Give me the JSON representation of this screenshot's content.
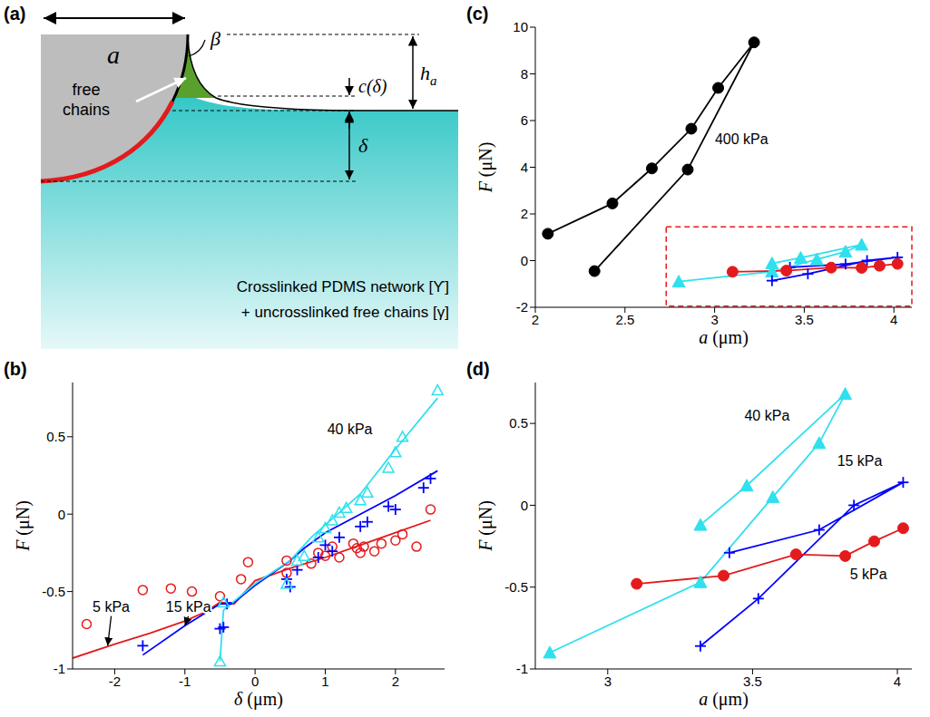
{
  "diagram": {
    "panel": "(a)",
    "contact_radius": "a",
    "angle": "β",
    "free_chains": "free chains",
    "meniscus_height": "c(δ)",
    "height": {
      "base": "h",
      "sub": "a"
    },
    "indentation": "δ",
    "material": [
      "Crosslinked PDMS network [ϒ]",
      "+ uncrosslinked free chains [γ]"
    ]
  },
  "chart_data": [
    {
      "panel": "(b)",
      "type": "line",
      "x_label": "δ (μm)",
      "y_label": "F (μN)",
      "xlim": [
        -2.6,
        2.7
      ],
      "xticks": [
        -2,
        -1,
        0,
        1,
        2
      ],
      "ylim": [
        -1,
        0.85
      ],
      "yticks": [
        -1,
        -0.5,
        0,
        0.5
      ],
      "grid": false,
      "series": [
        {
          "color": "#e41a1c",
          "marker": "open_circle",
          "line_style": "none",
          "x": [
            -2.4,
            -1.6,
            -1.2,
            -0.9,
            -0.5,
            -0.2,
            -0.1,
            0.45,
            0.45,
            0.8,
            0.9,
            1.0,
            1.1,
            1.2,
            1.4,
            1.45,
            1.5,
            1.55,
            1.7,
            1.8,
            2.0,
            2.1,
            2.3,
            2.5
          ],
          "values": [
            -0.71,
            -0.49,
            -0.48,
            -0.5,
            -0.53,
            -0.42,
            -0.31,
            -0.3,
            -0.38,
            -0.32,
            -0.25,
            -0.27,
            -0.21,
            -0.28,
            -0.19,
            -0.22,
            -0.25,
            -0.21,
            -0.24,
            -0.19,
            -0.17,
            -0.13,
            -0.21,
            0.03
          ]
        },
        {
          "color": "#e41a1c",
          "marker": "none",
          "line_style": "solid",
          "x": [
            -2.6,
            -2.0,
            -1.5,
            -1.0,
            -0.7,
            -0.5,
            -0.3,
            0.0,
            0.5,
            1.0,
            1.5,
            2.0,
            2.5
          ],
          "values": [
            -0.93,
            -0.84,
            -0.77,
            -0.69,
            -0.63,
            -0.57,
            -0.58,
            -0.43,
            -0.35,
            -0.28,
            -0.2,
            -0.12,
            -0.04
          ]
        },
        {
          "color": "#0000ff",
          "marker": "plus",
          "line_style": "none",
          "x": [
            -1.6,
            -0.5,
            -0.45,
            -0.4,
            0.45,
            0.5,
            0.6,
            0.9,
            1.0,
            1.1,
            1.2,
            1.5,
            1.6,
            1.9,
            2.0,
            2.4,
            2.5
          ],
          "values": [
            -0.85,
            -0.74,
            -0.73,
            -0.58,
            -0.42,
            -0.47,
            -0.36,
            -0.28,
            -0.2,
            -0.24,
            -0.15,
            -0.08,
            -0.05,
            0.05,
            0.03,
            0.17,
            0.23
          ]
        },
        {
          "color": "#0000ff",
          "marker": "none",
          "line_style": "solid",
          "x": [
            -1.6,
            -1.0,
            -0.5,
            -0.3,
            0.0,
            0.5,
            0.7,
            1.0,
            1.5,
            2.0,
            2.6
          ],
          "values": [
            -0.91,
            -0.72,
            -0.58,
            -0.57,
            -0.46,
            -0.3,
            -0.22,
            -0.12,
            0.0,
            0.12,
            0.28
          ]
        },
        {
          "color": "#2fe0ee",
          "marker": "open_triangle",
          "line_style": "none",
          "x": [
            -0.5,
            -0.45,
            0.45,
            0.6,
            0.7,
            0.9,
            1.0,
            1.1,
            1.2,
            1.3,
            1.5,
            1.6,
            1.9,
            2.0,
            2.1,
            2.6
          ],
          "values": [
            -0.95,
            -0.57,
            -0.45,
            -0.3,
            -0.27,
            -0.15,
            -0.09,
            -0.04,
            0.01,
            0.04,
            0.09,
            0.14,
            0.3,
            0.4,
            0.5,
            0.8
          ]
        },
        {
          "color": "#2fe0ee",
          "marker": "none",
          "line_style": "solid",
          "x": [
            -0.5,
            -0.45,
            0.0,
            0.5,
            0.8,
            1.0,
            1.5,
            2.0,
            2.6
          ],
          "values": [
            -0.95,
            -0.62,
            -0.45,
            -0.3,
            -0.15,
            -0.07,
            0.13,
            0.42,
            0.75
          ]
        }
      ],
      "annotations": [
        {
          "text": "40 kPa",
          "x": 1.35,
          "y": 0.55
        },
        {
          "text": "5 kPa",
          "x": -2.05,
          "y": -0.6,
          "arrow_to": [
            -2.1,
            -0.85
          ]
        },
        {
          "text": "15 kPa",
          "x": -0.95,
          "y": -0.6,
          "arrow_to": [
            -1.0,
            -0.72
          ]
        }
      ]
    },
    {
      "panel": "(c)",
      "type": "line",
      "x_label": "a (μm)",
      "y_label": "F (μN)",
      "xlim": [
        2,
        4.1
      ],
      "xticks": [
        2,
        2.5,
        3,
        3.5,
        4
      ],
      "ylim": [
        -2,
        10
      ],
      "yticks": [
        -2,
        0,
        2,
        4,
        6,
        8,
        10
      ],
      "grid": false,
      "zoom_box": {
        "x": [
          2.73,
          4.1
        ],
        "y": [
          -1.95,
          1.45
        ],
        "color": "#e41a1c",
        "line_style": "dashed"
      },
      "series": [
        {
          "color": "#000000",
          "marker": "filled_circle",
          "line_style": "solid",
          "x": [
            2.07,
            2.43,
            2.65,
            2.87,
            3.02,
            3.22,
            2.85,
            2.33
          ],
          "values": [
            1.15,
            2.45,
            3.95,
            5.65,
            7.4,
            9.35,
            3.9,
            -0.45
          ]
        },
        {
          "color": "#2fe0ee",
          "marker": "filled_triangle",
          "line_style": "solid",
          "x": [
            2.8,
            3.32,
            3.57,
            3.73,
            3.82,
            3.48,
            3.32
          ],
          "values": [
            -0.9,
            -0.47,
            0.05,
            0.38,
            0.68,
            0.12,
            -0.12
          ]
        },
        {
          "color": "#0000ff",
          "marker": "plus",
          "line_style": "solid",
          "x": [
            3.32,
            3.52,
            3.85,
            4.02,
            3.73,
            3.42
          ],
          "values": [
            -0.86,
            -0.57,
            0.0,
            0.14,
            -0.15,
            -0.29
          ]
        },
        {
          "color": "#e41a1c",
          "marker": "filled_circle",
          "line_style": "solid",
          "x": [
            3.1,
            3.4,
            3.65,
            3.82,
            3.92,
            4.02
          ],
          "values": [
            -0.48,
            -0.43,
            -0.3,
            -0.31,
            -0.22,
            -0.14
          ]
        }
      ],
      "annotations": [
        {
          "text": "400 kPa",
          "x": 3.15,
          "y": 5.2
        }
      ]
    },
    {
      "panel": "(d)",
      "type": "line",
      "x_label": "a (μm)",
      "y_label": "F (μN)",
      "xlim": [
        2.75,
        4.05
      ],
      "xticks": [
        3,
        3.5,
        4
      ],
      "ylim": [
        -1,
        0.75
      ],
      "yticks": [
        -1,
        -0.5,
        0,
        0.5
      ],
      "grid": false,
      "series": [
        {
          "color": "#2fe0ee",
          "marker": "filled_triangle",
          "line_style": "solid",
          "x": [
            2.8,
            3.32,
            3.57,
            3.73,
            3.82,
            3.48,
            3.32
          ],
          "values": [
            -0.9,
            -0.47,
            0.05,
            0.38,
            0.68,
            0.12,
            -0.12
          ]
        },
        {
          "color": "#0000ff",
          "marker": "plus",
          "line_style": "solid",
          "x": [
            3.32,
            3.52,
            3.85,
            4.02,
            3.73,
            3.42
          ],
          "values": [
            -0.86,
            -0.57,
            0.0,
            0.14,
            -0.15,
            -0.29
          ]
        },
        {
          "color": "#e41a1c",
          "marker": "filled_circle",
          "line_style": "solid",
          "x": [
            3.1,
            3.4,
            3.65,
            3.82,
            3.92,
            4.02
          ],
          "values": [
            -0.48,
            -0.43,
            -0.3,
            -0.31,
            -0.22,
            -0.14
          ]
        }
      ],
      "annotations": [
        {
          "text": "40 kPa",
          "x": 3.55,
          "y": 0.55
        },
        {
          "text": "15 kPa",
          "x": 3.87,
          "y": 0.27
        },
        {
          "text": "5 kPa",
          "x": 3.9,
          "y": -0.42
        }
      ]
    }
  ]
}
